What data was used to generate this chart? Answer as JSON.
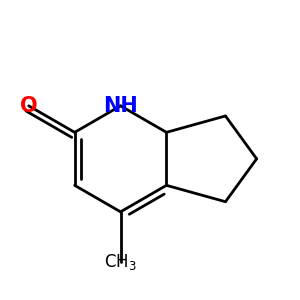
{
  "background": "#ffffff",
  "atom_colors": {
    "O": "#ff0000",
    "N": "#0000ff",
    "C": "#000000"
  },
  "lw": 2.0,
  "dbo": 0.022,
  "figsize": [
    3.0,
    3.0
  ],
  "dpi": 100
}
